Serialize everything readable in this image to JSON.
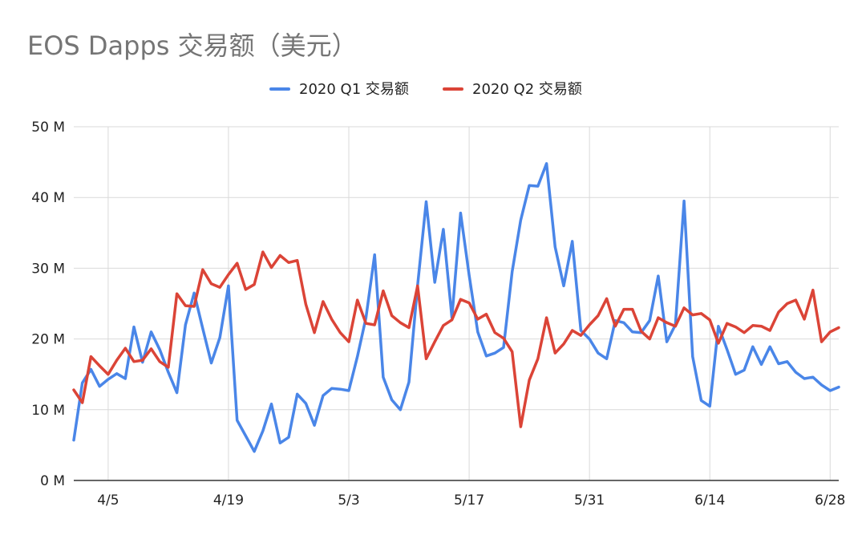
{
  "chart_data": {
    "type": "line",
    "title": "EOS Dapps 交易额（美元）",
    "xlabel": "",
    "ylabel": "",
    "ylim": [
      0,
      50
    ],
    "y_ticks": [
      "0 M",
      "10 M",
      "20 M",
      "30 M",
      "40 M",
      "50 M"
    ],
    "y_tick_values": [
      0,
      10,
      20,
      30,
      40,
      50
    ],
    "x_ticks": [
      "4/5",
      "4/19",
      "5/3",
      "5/17",
      "5/31",
      "6/14",
      "6/28"
    ],
    "x_tick_index": [
      4,
      18,
      32,
      46,
      60,
      74,
      88
    ],
    "x_count": 90,
    "grid": true,
    "legend_position": "top-center",
    "series": [
      {
        "name": "2020 Q1 交易额",
        "color": "#4a86e8",
        "values": [
          5.7,
          13.8,
          15.7,
          13.3,
          14.3,
          15.1,
          14.4,
          21.7,
          16.7,
          21.0,
          18.5,
          15.3,
          12.4,
          22.0,
          26.5,
          21.5,
          16.6,
          20.2,
          27.5,
          8.5,
          6.3,
          4.1,
          7.0,
          10.8,
          5.3,
          6.1,
          12.2,
          10.9,
          7.8,
          12.0,
          13.0,
          12.9,
          12.7,
          17.5,
          23.0,
          31.9,
          14.6,
          11.4,
          10.0,
          13.9,
          27.6,
          39.4,
          28.0,
          35.5,
          23.0,
          37.8,
          29.0,
          21.0,
          17.6,
          18.0,
          18.8,
          29.5,
          36.8,
          41.7,
          41.6,
          44.8,
          33.0,
          27.5,
          33.8,
          21.2,
          20.0,
          18.0,
          17.2,
          22.6,
          22.3,
          21.0,
          20.9,
          22.6,
          28.9,
          19.6,
          22.0,
          39.5,
          17.5,
          11.3,
          10.5,
          21.8,
          18.5,
          15.0,
          15.6,
          18.9,
          16.4,
          18.9,
          16.5,
          16.8,
          15.3,
          14.4,
          14.6,
          13.5,
          12.7,
          13.2
        ]
      },
      {
        "name": "2020 Q2 交易额",
        "color": "#db4437",
        "values": [
          12.8,
          11.0,
          17.5,
          16.2,
          15.0,
          17.0,
          18.7,
          16.8,
          17.0,
          18.6,
          16.8,
          16.0,
          26.4,
          24.7,
          24.6,
          29.8,
          27.8,
          27.3,
          29.1,
          30.7,
          27.0,
          27.7,
          32.3,
          30.1,
          31.8,
          30.8,
          31.1,
          24.9,
          20.9,
          25.3,
          22.8,
          20.9,
          19.6,
          25.5,
          22.2,
          22.0,
          26.8,
          23.3,
          22.3,
          21.6,
          27.5,
          17.2,
          19.6,
          21.9,
          22.7,
          25.6,
          25.1,
          22.8,
          23.5,
          20.9,
          20.1,
          18.2,
          7.6,
          14.2,
          17.2,
          23.0,
          18.0,
          19.3,
          21.2,
          20.5,
          22.0,
          23.3,
          25.7,
          21.8,
          24.2,
          24.2,
          21.1,
          20.0,
          23.0,
          22.3,
          21.8,
          24.4,
          23.4,
          23.6,
          22.7,
          19.4,
          22.2,
          21.7,
          20.9,
          21.9,
          21.8,
          21.2,
          23.8,
          25.0,
          25.5,
          22.8,
          26.9,
          19.6,
          21.0,
          21.6
        ]
      }
    ]
  }
}
